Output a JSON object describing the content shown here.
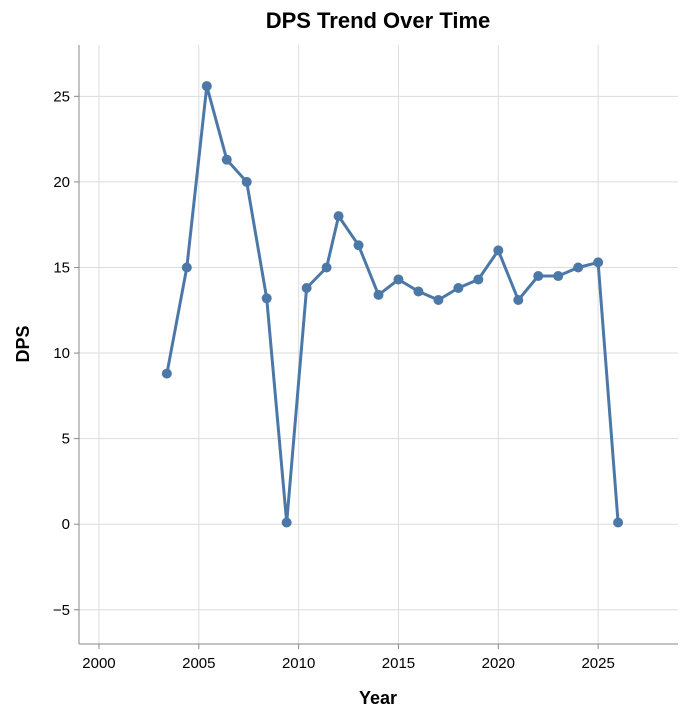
{
  "chart_data": {
    "type": "line",
    "title": "DPS Trend Over Time",
    "xlabel": "Year",
    "ylabel": "DPS",
    "xlim": [
      1999,
      2029
    ],
    "ylim": [
      -7,
      28
    ],
    "x_ticks": [
      2000,
      2005,
      2010,
      2015,
      2020,
      2025
    ],
    "y_ticks": [
      -5,
      0,
      5,
      10,
      15,
      20,
      25
    ],
    "x_tick_labels": [
      "2000",
      "2005",
      "2010",
      "2015",
      "2020",
      "2025"
    ],
    "y_tick_labels": [
      "−5",
      "0",
      "5",
      "10",
      "15",
      "20",
      "25"
    ],
    "grid": true,
    "line_color": "#4c78a8",
    "series": [
      {
        "x": [
          2003.4,
          2004.4,
          2005.4,
          2006.4,
          2007.4,
          2008.4,
          2009.4,
          2010.4,
          2011.4,
          2012.0,
          2013.0,
          2014.0,
          2015.0,
          2016.0,
          2017.0,
          2018.0,
          2019.0,
          2020.0,
          2021.0,
          2022.0,
          2023.0,
          2024.0,
          2025.0,
          2026.0
        ],
        "values": [
          8.8,
          15.0,
          25.6,
          21.3,
          20.0,
          13.2,
          0.1,
          13.8,
          15.0,
          18.0,
          16.3,
          13.4,
          14.3,
          13.6,
          13.1,
          13.8,
          14.3,
          16.0,
          13.1,
          14.5,
          14.5,
          15.0,
          15.3,
          0.1
        ]
      }
    ]
  }
}
